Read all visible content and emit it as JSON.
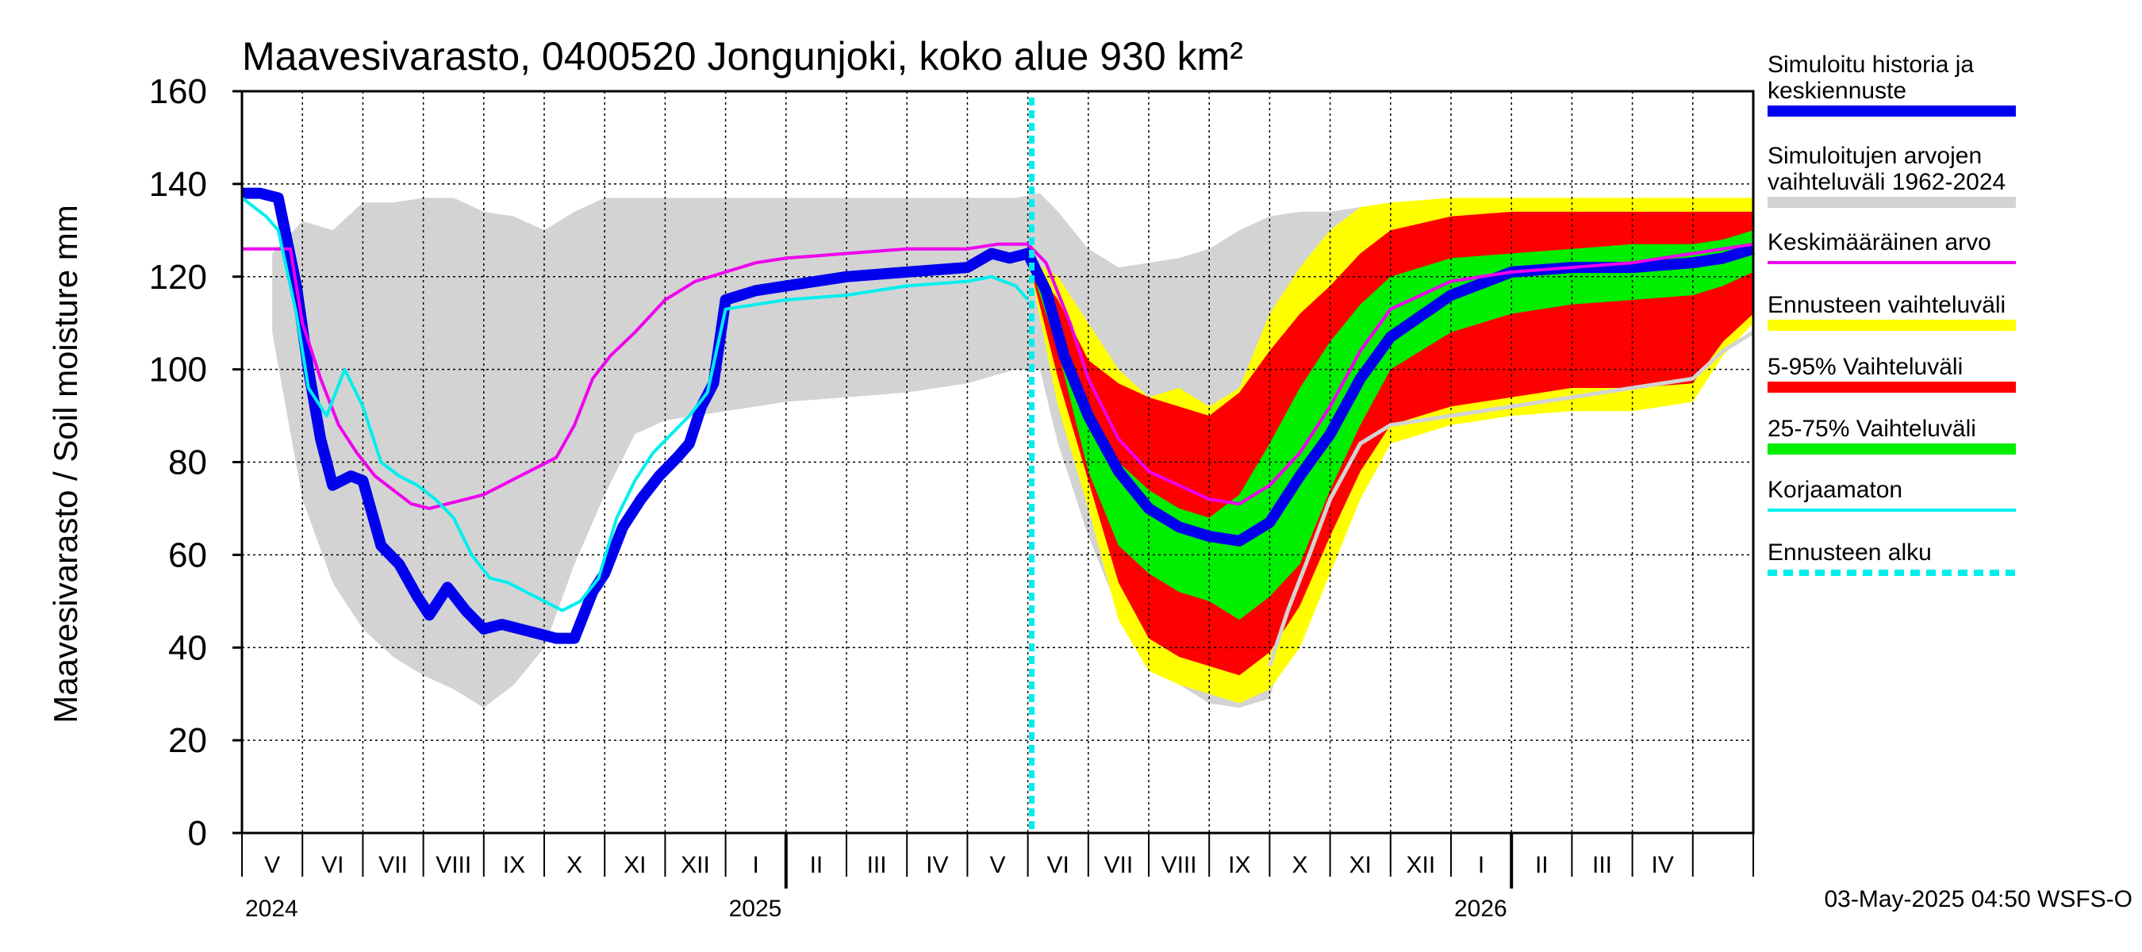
{
  "chart_data": {
    "type": "area",
    "title": "Maavesivarasto, 0400520 Jongunjoki, koko alue 930 km²",
    "ylabel": "Maavesivarasto / Soil moisture   mm",
    "ylim": [
      0,
      160
    ],
    "yticks": [
      0,
      20,
      40,
      60,
      80,
      100,
      120,
      140,
      160
    ],
    "grid": true,
    "x_range_months": [
      "2024-04-01",
      "2026-04-30"
    ],
    "forecast_start": "2025-05-03",
    "month_labels": [
      {
        "label": "V",
        "month": 1.5
      },
      {
        "label": "VI",
        "month": 2.5
      },
      {
        "label": "VII",
        "month": 3.5
      },
      {
        "label": "VIII",
        "month": 4.5
      },
      {
        "label": "IX",
        "month": 5.5
      },
      {
        "label": "X",
        "month": 6.5
      },
      {
        "label": "XI",
        "month": 7.5
      },
      {
        "label": "XII",
        "month": 8.5
      },
      {
        "label": "I",
        "month": 9.5
      },
      {
        "label": "II",
        "month": 10.5
      },
      {
        "label": "III",
        "month": 11.5
      },
      {
        "label": "IV",
        "month": 12.5
      },
      {
        "label": "V",
        "month": 13.5
      },
      {
        "label": "VI",
        "month": 14.5
      },
      {
        "label": "VII",
        "month": 15.5
      },
      {
        "label": "VIII",
        "month": 16.5
      },
      {
        "label": "IX",
        "month": 17.5
      },
      {
        "label": "X",
        "month": 18.5
      },
      {
        "label": "XI",
        "month": 19.5
      },
      {
        "label": "XII",
        "month": 20.5
      },
      {
        "label": "I",
        "month": 21.5
      },
      {
        "label": "II",
        "month": 22.5
      },
      {
        "label": "III",
        "month": 23.5
      },
      {
        "label": "IV",
        "month": 24.5
      }
    ],
    "year_labels": [
      {
        "label": "2024",
        "month": 1
      },
      {
        "label": "2025",
        "month": 9
      },
      {
        "label": "2026",
        "month": 21
      }
    ],
    "year_boundaries": [
      9,
      21
    ],
    "x_month_units": "months since 2024-04-01; grid every month",
    "series": [
      {
        "name": "Simuloitujen arvojen vaihteluväli 1962-2024",
        "role": "band",
        "color": "#d3d3d3",
        "x": [
          0.5,
          1,
          1.5,
          2,
          2.5,
          3,
          3.5,
          4,
          4.5,
          5,
          5.5,
          6,
          6.5,
          7,
          8,
          9,
          10,
          11,
          12,
          12.8,
          13.2,
          13.5,
          14,
          14.5,
          15,
          15.5,
          16,
          16.5,
          17,
          17.5,
          18,
          18.5,
          19,
          20,
          21,
          22,
          23,
          24,
          24.5,
          25
        ],
        "upper": [
          125,
          132,
          130,
          136,
          136,
          137,
          137,
          134,
          133,
          130,
          134,
          137,
          137,
          137,
          137,
          137,
          137,
          137,
          137,
          137,
          138,
          134,
          126,
          122,
          123,
          124,
          126,
          130,
          133,
          134,
          134,
          135,
          135,
          136,
          136,
          136,
          136,
          137,
          137,
          137
        ],
        "lower": [
          108,
          72,
          54,
          44,
          38,
          34,
          31,
          27,
          32,
          40,
          58,
          73,
          86,
          89,
          91,
          93,
          94,
          95,
          97,
          100,
          100,
          84,
          64,
          48,
          40,
          32,
          28,
          27,
          29,
          52,
          78,
          86,
          88,
          91,
          93,
          96,
          97,
          103,
          110,
          116
        ]
      },
      {
        "name": "Ennusteen vaihteluväli",
        "role": "band",
        "color": "#ffff00",
        "x": [
          13.0,
          13.5,
          14,
          14.5,
          15,
          15.5,
          16,
          16.5,
          17,
          17.5,
          18,
          18.5,
          19,
          20,
          21,
          22,
          23,
          24,
          24.5,
          25
        ],
        "upper": [
          124,
          120,
          110,
          100,
          94,
          96,
          92,
          96,
          112,
          122,
          130,
          135,
          136,
          137,
          137,
          137,
          137,
          137,
          137,
          137
        ],
        "lower": [
          124,
          92,
          70,
          46,
          35,
          32,
          30,
          28,
          31,
          40,
          56,
          72,
          84,
          88,
          90,
          91,
          91,
          93,
          103,
          110
        ]
      },
      {
        "name": "5-95% Vaihteluväli",
        "role": "band",
        "color": "#ff0000",
        "x": [
          13.0,
          13.5,
          14,
          14.5,
          15,
          15.5,
          16,
          16.5,
          17,
          17.5,
          18,
          18.5,
          19,
          20,
          21,
          22,
          23,
          24,
          24.5,
          25
        ],
        "upper": [
          124,
          115,
          102,
          97,
          94,
          92,
          90,
          95,
          104,
          112,
          118,
          125,
          130,
          133,
          134,
          134,
          134,
          134,
          134,
          134
        ],
        "lower": [
          124,
          98,
          76,
          54,
          42,
          38,
          36,
          34,
          39,
          49,
          64,
          78,
          88,
          92,
          94,
          96,
          96,
          97,
          106,
          112
        ]
      },
      {
        "name": "25-75% Vaihteluväli",
        "role": "band",
        "color": "#00ee00",
        "x": [
          13.0,
          13.5,
          14,
          14.5,
          15,
          15.5,
          16,
          16.5,
          17,
          17.5,
          18,
          18.5,
          19,
          20,
          21,
          22,
          23,
          24,
          24.5,
          25
        ],
        "upper": [
          124,
          108,
          92,
          80,
          74,
          70,
          68,
          73,
          84,
          96,
          106,
          114,
          120,
          124,
          125,
          126,
          127,
          127,
          128,
          130
        ],
        "lower": [
          124,
          104,
          78,
          62,
          56,
          52,
          50,
          46,
          51,
          58,
          74,
          88,
          100,
          108,
          112,
          114,
          115,
          116,
          118,
          121
        ]
      },
      {
        "name": "Simuloitu historia ja keskiennuste",
        "role": "line",
        "color": "#0000ee",
        "width": 14,
        "x": [
          0,
          0.3,
          0.6,
          0.9,
          1.1,
          1.3,
          1.5,
          1.8,
          2.0,
          2.3,
          2.6,
          2.9,
          3.1,
          3.4,
          3.7,
          4.0,
          4.3,
          4.6,
          4.9,
          5.2,
          5.5,
          5.8,
          6.0,
          6.3,
          6.6,
          6.9,
          7.2,
          7.4,
          7.6,
          7.8,
          8.0,
          8.5,
          9,
          10,
          11,
          12,
          12.4,
          12.7,
          13.0,
          13.3,
          13.6,
          14.0,
          14.5,
          15.0,
          15.5,
          16.0,
          16.5,
          17.0,
          17.5,
          18.0,
          18.5,
          19.0,
          20,
          21,
          22,
          23,
          24,
          24.5,
          25
        ],
        "y": [
          138,
          138,
          137,
          118,
          100,
          85,
          75,
          77,
          76,
          62,
          58,
          51,
          47,
          53,
          48,
          44,
          45,
          44,
          43,
          42,
          42,
          52,
          56,
          66,
          72,
          77,
          81,
          84,
          92,
          97,
          115,
          117,
          118,
          120,
          121,
          122,
          125,
          124,
          125,
          117,
          103,
          90,
          78,
          70,
          66,
          64,
          63,
          67,
          77,
          86,
          98,
          107,
          116,
          121,
          122,
          122,
          123,
          124,
          126
        ]
      },
      {
        "name": "Keskimääräinen arvo",
        "role": "line",
        "color": "#ee00ee",
        "width": 4,
        "x": [
          0,
          0.5,
          0.8,
          1.0,
          1.3,
          1.6,
          1.9,
          2.2,
          2.5,
          2.8,
          3.1,
          3.4,
          3.7,
          4.0,
          4.3,
          4.6,
          4.9,
          5.2,
          5.5,
          5.8,
          6.1,
          6.5,
          7.0,
          7.5,
          8.0,
          8.5,
          9,
          10,
          11,
          12,
          12.5,
          13.0,
          13.3,
          13.7,
          14.0,
          14.5,
          15.0,
          15.5,
          16.0,
          16.5,
          17.0,
          17.5,
          18.0,
          18.5,
          19.0,
          20,
          21,
          22,
          23,
          24,
          25
        ],
        "y": [
          126,
          126,
          126,
          110,
          98,
          88,
          82,
          77,
          74,
          71,
          70,
          71,
          72,
          73,
          75,
          77,
          79,
          81,
          88,
          98,
          103,
          108,
          115,
          119,
          121,
          123,
          124,
          125,
          126,
          126,
          127,
          127,
          123,
          110,
          98,
          85,
          78,
          75,
          72,
          71,
          75,
          82,
          92,
          104,
          113,
          119,
          121,
          122,
          123,
          125,
          127
        ]
      },
      {
        "name": "Korjaamaton",
        "role": "line",
        "color": "#00eeee",
        "width": 4,
        "x": [
          0,
          0.4,
          0.6,
          0.9,
          1.1,
          1.4,
          1.7,
          2.0,
          2.3,
          2.6,
          2.9,
          3.2,
          3.5,
          3.8,
          4.1,
          4.4,
          4.7,
          5.0,
          5.3,
          5.6,
          5.9,
          6.2,
          6.5,
          6.8,
          7.1,
          7.4,
          7.7,
          8.0,
          8.5,
          9,
          10,
          11,
          12,
          12.4,
          12.8,
          13.0
        ],
        "y": [
          137,
          133,
          130,
          112,
          96,
          90,
          100,
          92,
          80,
          77,
          75,
          72,
          68,
          60,
          55,
          54,
          52,
          50,
          48,
          50,
          55,
          68,
          76,
          82,
          86,
          90,
          95,
          113,
          114,
          115,
          116,
          118,
          119,
          120,
          118,
          115
        ]
      },
      {
        "name": "Simuloitujen arvojen alaraja (2026)",
        "role": "line",
        "color": "#d3d3d3",
        "width": 5,
        "x": [
          17.0,
          17.3,
          17.6,
          18.0,
          18.5,
          19.0,
          20,
          21,
          22,
          23,
          24,
          24.5,
          25
        ],
        "y": [
          36,
          48,
          58,
          72,
          84,
          88,
          90,
          92,
          94,
          96,
          98,
          104,
          108
        ]
      }
    ],
    "legend": [
      {
        "label": "Simuloitu historia ja keskiennuste",
        "color": "#0000ee",
        "style": "thick"
      },
      {
        "label": "Simuloitujen arvojen vaihteluväli 1962-2024",
        "color": "#d3d3d3",
        "style": "thick"
      },
      {
        "label": "Keskimääräinen arvo",
        "color": "#ee00ee",
        "style": "thin"
      },
      {
        "label": "Ennusteen vaihteluväli",
        "color": "#ffff00",
        "style": "thick"
      },
      {
        "label": "5-95% Vaihteluväli",
        "color": "#ff0000",
        "style": "thick"
      },
      {
        "label": "25-75% Vaihteluväli",
        "color": "#00ee00",
        "style": "thick"
      },
      {
        "label": "Korjaamaton",
        "color": "#00eeee",
        "style": "thin"
      },
      {
        "label": "Ennusteen alku",
        "color": "#00eeee",
        "style": "dashed"
      }
    ],
    "legend_position": "right",
    "footer": "03-May-2025 04:50 WSFS-O"
  }
}
